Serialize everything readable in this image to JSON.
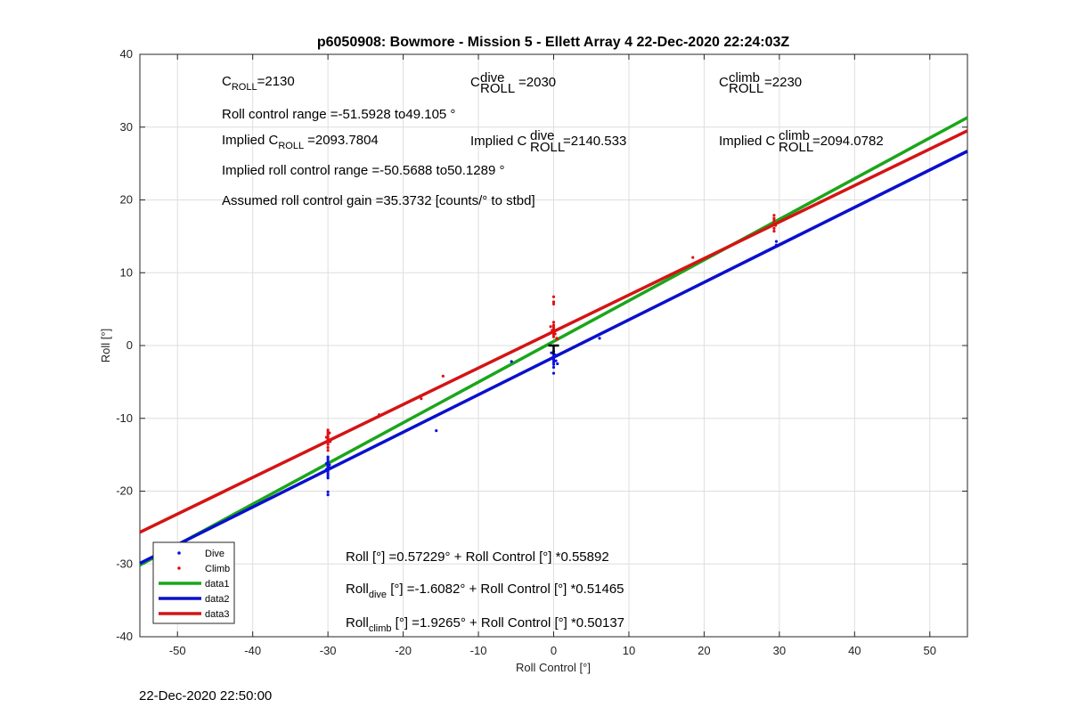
{
  "chart_data": {
    "type": "scatter",
    "title": "p6050908: Bowmore - Mission 5 - Ellett Array 4 22-Dec-2020 22:24:03Z",
    "xlabel": "Roll Control [°]",
    "ylabel": "Roll [°]",
    "xlim": [
      -55,
      55
    ],
    "ylim": [
      -40,
      40
    ],
    "xticks": [
      -50,
      -40,
      -30,
      -20,
      -10,
      0,
      10,
      20,
      30,
      40,
      50
    ],
    "yticks": [
      -40,
      -30,
      -20,
      -10,
      0,
      10,
      20,
      30,
      40
    ],
    "grid": true,
    "legend_position": "bottom-left",
    "series": [
      {
        "name": "Dive",
        "kind": "points",
        "color": "#0a10e0",
        "points": [
          [
            -30,
            -15.3
          ],
          [
            -30,
            -15.6
          ],
          [
            -30,
            -15.9
          ],
          [
            -30,
            -16.1
          ],
          [
            -30,
            -16.3
          ],
          [
            -30,
            -16.5
          ],
          [
            -30,
            -16.7
          ],
          [
            -30,
            -16.9
          ],
          [
            -30,
            -17.1
          ],
          [
            -30,
            -17.3
          ],
          [
            -30,
            -17.6
          ],
          [
            -30,
            -17.9
          ],
          [
            -30,
            -18.2
          ],
          [
            -29.8,
            -16.4
          ],
          [
            -29.8,
            -16.8
          ],
          [
            -30.2,
            -17.0
          ],
          [
            -30.2,
            -16.2
          ],
          [
            -30,
            -20.1
          ],
          [
            -30,
            -20.5
          ],
          [
            -15.6,
            -11.7
          ],
          [
            -5.6,
            -2.2
          ],
          [
            6.1,
            1.0
          ],
          [
            0,
            -0.8
          ],
          [
            0,
            -1.2
          ],
          [
            0,
            -1.5
          ],
          [
            0,
            -1.8
          ],
          [
            0,
            -2.0
          ],
          [
            0,
            -2.3
          ],
          [
            0,
            -2.6
          ],
          [
            0,
            -3.0
          ],
          [
            0,
            -3.8
          ],
          [
            0.2,
            -1.3
          ],
          [
            -0.2,
            -1.7
          ],
          [
            0.3,
            -2.1
          ],
          [
            0.5,
            -2.5
          ],
          [
            -0.3,
            -1.0
          ],
          [
            29.6,
            14.3
          ],
          [
            29.6,
            13.8
          ]
        ]
      },
      {
        "name": "Climb",
        "kind": "points",
        "color": "#e01010",
        "points": [
          [
            -30,
            -11.6
          ],
          [
            -30,
            -11.9
          ],
          [
            -30,
            -12.2
          ],
          [
            -30,
            -12.5
          ],
          [
            -30,
            -12.8
          ],
          [
            -30,
            -13.0
          ],
          [
            -30,
            -13.3
          ],
          [
            -30,
            -13.6
          ],
          [
            -30,
            -14.0
          ],
          [
            -30,
            -14.4
          ],
          [
            -29.8,
            -12.0
          ],
          [
            -30.2,
            -12.6
          ],
          [
            -29.7,
            -13.2
          ],
          [
            -23.2,
            -9.5
          ],
          [
            -17.6,
            -7.3
          ],
          [
            -14.7,
            -4.2
          ],
          [
            18.5,
            12.1
          ],
          [
            0,
            6.7
          ],
          [
            0,
            6.0
          ],
          [
            0,
            5.7
          ],
          [
            0,
            3.2
          ],
          [
            0,
            2.8
          ],
          [
            0,
            2.5
          ],
          [
            0,
            2.2
          ],
          [
            0,
            2.0
          ],
          [
            0,
            1.8
          ],
          [
            0,
            1.5
          ],
          [
            0,
            1.2
          ],
          [
            0.2,
            1.6
          ],
          [
            -0.2,
            2.1
          ],
          [
            0.4,
            1.0
          ],
          [
            -0.4,
            2.6
          ],
          [
            0.5,
            0.9
          ],
          [
            29.3,
            17.9
          ],
          [
            29.3,
            17.5
          ],
          [
            29.3,
            17.2
          ],
          [
            29.3,
            16.8
          ],
          [
            29.3,
            16.1
          ],
          [
            29.3,
            15.7
          ],
          [
            29.5,
            16.5
          ]
        ]
      },
      {
        "name": "data1",
        "kind": "line",
        "color": "#1aa61a",
        "intercept": 0.57229,
        "slope": 0.55892
      },
      {
        "name": "data2",
        "kind": "line",
        "color": "#0a10cc",
        "intercept": -1.6082,
        "slope": 0.51465
      },
      {
        "name": "data3",
        "kind": "line",
        "color": "#d41414",
        "intercept": 1.9265,
        "slope": 0.50137
      }
    ],
    "marker": {
      "x": 0,
      "y": 0,
      "color": "#000000"
    }
  },
  "annotations": {
    "c_roll_base": "C",
    "c_roll_sub": "ROLL",
    "c_roll_val": "=2130",
    "c_dive_sup": "dive",
    "c_dive_val": "=2030",
    "c_climb_sup": "climb",
    "c_climb_val": "=2230",
    "roll_control_range": "Roll control range =-51.5928 to49.105 °",
    "implied_prefix": "Implied C",
    "implied_c_roll_val": "=2093.7804",
    "implied_dive_val": "=2140.533",
    "implied_climb_val": "=2094.0782",
    "implied_range": "Implied roll control range =-50.5688 to50.1289 °",
    "assumed_gain": "Assumed roll control gain =35.3732 [counts/° to stbd]",
    "fit1": "Roll [°] =0.57229° + Roll Control [°] *0.55892",
    "fit2_base": "Roll",
    "fit2_sub": "dive",
    "fit2_rest": " [°] =-1.6082° + Roll Control [°] *0.51465",
    "fit3_base": "Roll",
    "fit3_sub": "climb",
    "fit3_rest": " [°] =1.9265° + Roll Control [°] *0.50137"
  },
  "footer": {
    "date": "22-Dec-2020 22:50:00"
  }
}
